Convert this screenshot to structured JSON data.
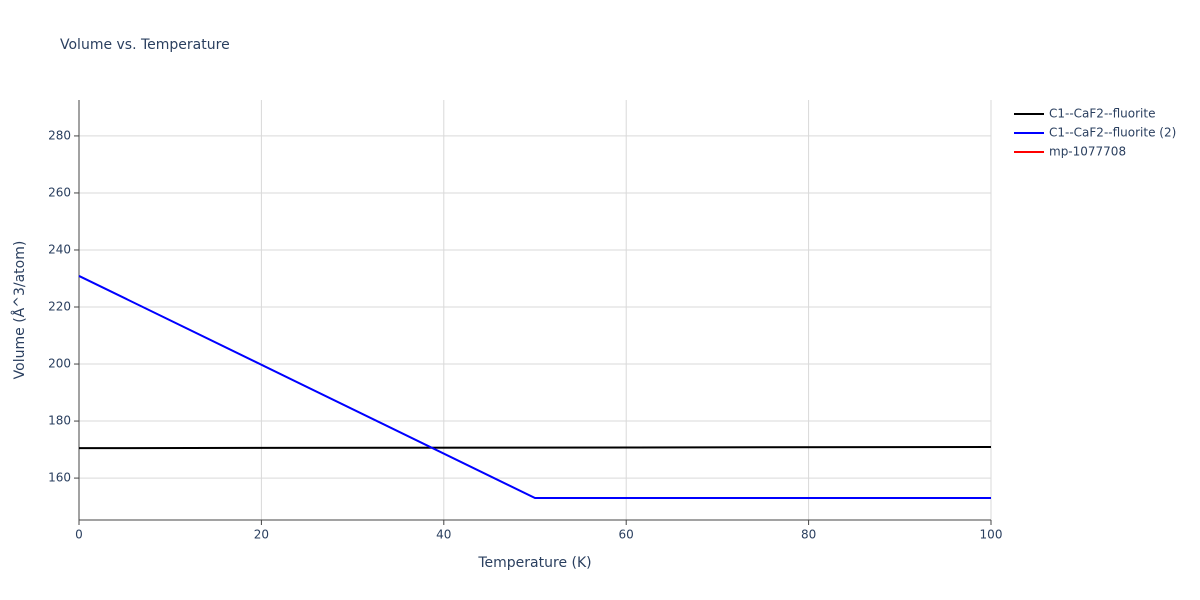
{
  "chart_data": {
    "type": "line",
    "title": "Volume vs. Temperature",
    "x_label": "Temperature (K)",
    "y_label": "Volume (Å^3/atom)",
    "xlim": [
      0,
      100
    ],
    "xticks": [
      0,
      20,
      40,
      60,
      80,
      100
    ],
    "ylim": [
      145.3,
      292.6
    ],
    "yticks": [
      160,
      180,
      200,
      220,
      240,
      260,
      280
    ],
    "grid": true,
    "legend": "right",
    "series": [
      {
        "name": "C1--CaF2--fluorite",
        "color": "#000000",
        "x": [
          0,
          100
        ],
        "values": [
          170.5,
          170.9
        ]
      },
      {
        "name": "C1--CaF2--fluorite (2)",
        "color": "#0000ff",
        "x": [
          0,
          50,
          100
        ],
        "values": [
          230.9,
          153.0,
          153.0
        ]
      },
      {
        "name": "mp-1077708",
        "color": "#ff0000",
        "x": [],
        "values": []
      }
    ]
  }
}
